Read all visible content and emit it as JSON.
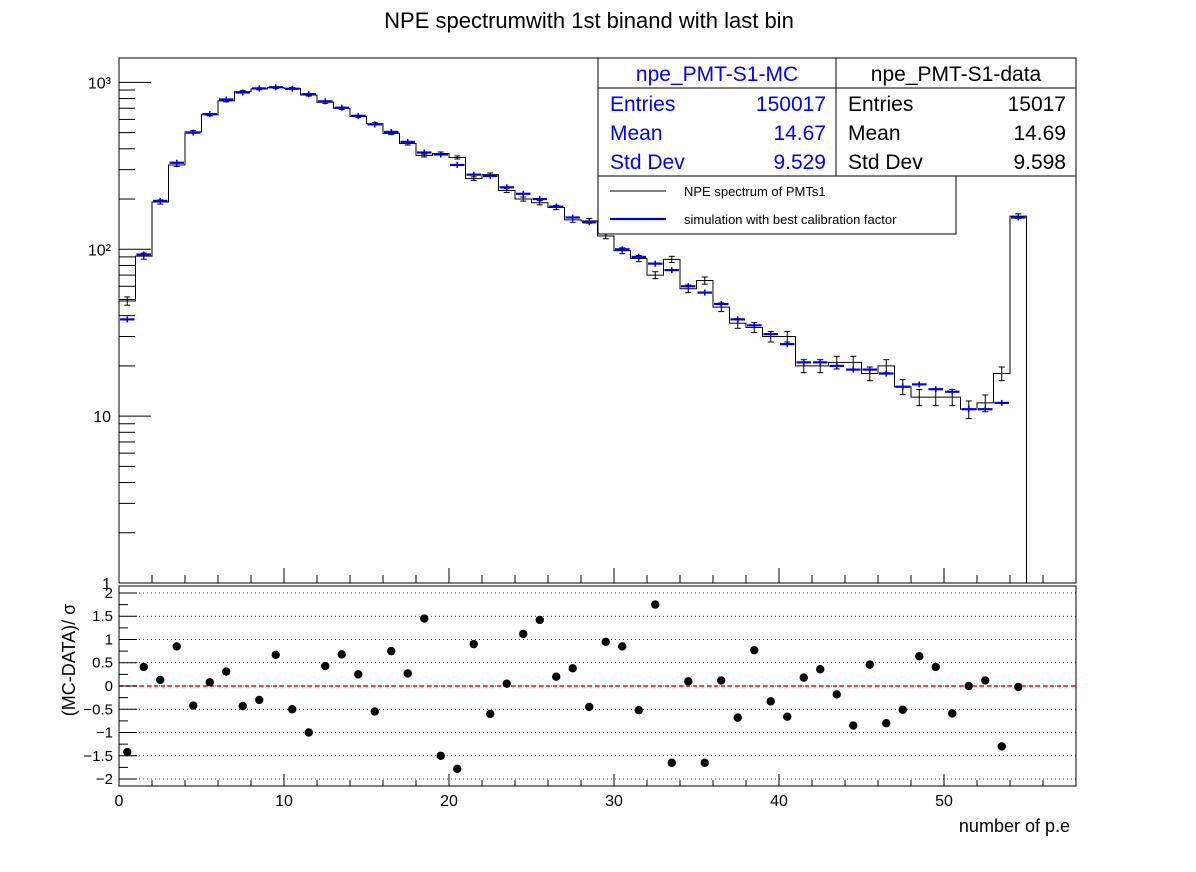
{
  "title": "NPE spectrumwith 1st binand with last bin",
  "chart_data": [
    {
      "type": "histogram",
      "yscale": "log",
      "xlim": [
        0,
        58
      ],
      "ylim": [
        1,
        1400
      ],
      "bin_width": 1,
      "y_tick_labels": [
        "1",
        "10",
        "10²",
        "10³"
      ],
      "y_tick_values": [
        1,
        10,
        100,
        1000
      ],
      "series": [
        {
          "name": "NPE spectrum of PMTs1",
          "color": "#000000",
          "style": "step-with-errors",
          "x_centers": [
            0.5,
            1.5,
            2.5,
            3.5,
            4.5,
            5.5,
            6.5,
            7.5,
            8.5,
            9.5,
            10.5,
            11.5,
            12.5,
            13.5,
            14.5,
            15.5,
            16.5,
            17.5,
            18.5,
            19.5,
            20.5,
            21.5,
            22.5,
            23.5,
            24.5,
            25.5,
            26.5,
            27.5,
            28.5,
            29.5,
            30.5,
            31.5,
            32.5,
            33.5,
            34.5,
            35.5,
            36.5,
            37.5,
            38.5,
            39.5,
            40.5,
            41.5,
            42.5,
            43.5,
            44.5,
            45.5,
            46.5,
            47.5,
            48.5,
            49.5,
            50.5,
            51.5,
            52.5,
            53.5,
            54.5
          ],
          "values": [
            49,
            91,
            192,
            320,
            505,
            640,
            775,
            880,
            915,
            930,
            920,
            840,
            760,
            700,
            625,
            565,
            495,
            430,
            365,
            375,
            355,
            265,
            280,
            225,
            200,
            190,
            178,
            150,
            148,
            120,
            98,
            88,
            70,
            87,
            58,
            65,
            45,
            36,
            34,
            30,
            30,
            20,
            20,
            21,
            21,
            18,
            20,
            15,
            13,
            13,
            13,
            11,
            12,
            18,
            158
          ]
        },
        {
          "name": "simulation with best calibration factor",
          "color": "#0000dd",
          "style": "markers-with-errors",
          "x_centers": [
            0.5,
            1.5,
            2.5,
            3.5,
            4.5,
            5.5,
            6.5,
            7.5,
            8.5,
            9.5,
            10.5,
            11.5,
            12.5,
            13.5,
            14.5,
            15.5,
            16.5,
            17.5,
            18.5,
            19.5,
            20.5,
            21.5,
            22.5,
            23.5,
            24.5,
            25.5,
            26.5,
            27.5,
            28.5,
            29.5,
            30.5,
            31.5,
            32.5,
            33.5,
            34.5,
            35.5,
            36.5,
            37.5,
            38.5,
            39.5,
            40.5,
            41.5,
            42.5,
            43.5,
            44.5,
            45.5,
            46.5,
            47.5,
            48.5,
            49.5,
            50.5,
            51.5,
            52.5,
            53.5,
            54.5
          ],
          "values": [
            38,
            93,
            195,
            330,
            500,
            645,
            790,
            870,
            920,
            935,
            915,
            850,
            770,
            705,
            630,
            560,
            505,
            440,
            380,
            370,
            320,
            280,
            275,
            235,
            215,
            200,
            180,
            155,
            145,
            125,
            100,
            90,
            82,
            75,
            60,
            55,
            47,
            38,
            35,
            31,
            27,
            21,
            21,
            20,
            19,
            19,
            18,
            15,
            15.5,
            14.5,
            14,
            11,
            11,
            12,
            155
          ]
        }
      ],
      "stats_boxes": [
        {
          "name": "npe_PMT-S1-MC",
          "color": "#0000ff",
          "entries": "150017",
          "mean": "14.67",
          "std_dev": "9.529"
        },
        {
          "name": "npe_PMT-S1-data",
          "color": "#000000",
          "entries": "15017",
          "mean": "14.69",
          "std_dev": "9.598"
        }
      ],
      "stats_labels": {
        "entries": "Entries",
        "mean": "Mean",
        "std_dev": "Std Dev"
      },
      "legend": {
        "placement": "top-right",
        "entries": [
          {
            "label": "NPE spectrum of PMTs1",
            "color": "#000000"
          },
          {
            "label": "simulation with best calibration factor",
            "color": "#0000dd"
          }
        ]
      }
    },
    {
      "type": "scatter",
      "xlabel": "number of p.e",
      "ylabel": "(MC-DATA)/ σ",
      "xlim": [
        0,
        58
      ],
      "ylim": [
        -2.15,
        2.15
      ],
      "x_ticks": [
        0,
        10,
        20,
        30,
        40,
        50
      ],
      "x_tick_labels": [
        "0",
        "10",
        "20",
        "30",
        "40",
        "50"
      ],
      "y_ticks": [
        -2,
        -1.5,
        -1,
        -0.5,
        0,
        0.5,
        1,
        1.5,
        2
      ],
      "y_tick_labels": [
        "−2",
        "−1.5",
        "−1",
        "−0.5",
        "0",
        "0.5",
        "1",
        "1.5",
        "2"
      ],
      "grid": "horizontal-dotted",
      "reference_line": {
        "y": 0,
        "color": "#ff0000",
        "style": "dashed"
      },
      "x": [
        0.5,
        1.5,
        2.5,
        3.5,
        4.5,
        5.5,
        6.5,
        7.5,
        8.5,
        9.5,
        10.5,
        11.5,
        12.5,
        13.5,
        14.5,
        15.5,
        16.5,
        17.5,
        18.5,
        19.5,
        20.5,
        21.5,
        22.5,
        23.5,
        24.5,
        25.5,
        26.5,
        27.5,
        28.5,
        29.5,
        30.5,
        31.5,
        32.5,
        33.5,
        34.5,
        35.5,
        36.5,
        37.5,
        38.5,
        39.5,
        40.5,
        41.5,
        42.5,
        43.5,
        44.5,
        45.5,
        46.5,
        47.5,
        48.5,
        49.5,
        50.5,
        51.5,
        52.5,
        53.5,
        54.5
      ],
      "y": [
        -1.42,
        0.41,
        0.13,
        0.85,
        -0.42,
        0.08,
        0.31,
        -0.43,
        -0.3,
        0.67,
        -0.5,
        -1.0,
        0.43,
        0.68,
        0.25,
        -0.55,
        0.75,
        0.27,
        1.45,
        -1.5,
        -1.78,
        0.9,
        -0.6,
        0.05,
        1.12,
        1.42,
        0.2,
        0.38,
        -0.45,
        0.95,
        0.85,
        -0.52,
        1.75,
        -1.65,
        0.1,
        -1.65,
        0.12,
        -0.68,
        0.77,
        -0.33,
        -0.66,
        0.18,
        0.36,
        -0.18,
        -0.85,
        0.46,
        -0.8,
        -0.51,
        0.64,
        0.41,
        -0.59,
        0.0,
        0.12,
        -1.3,
        -0.02
      ]
    }
  ]
}
